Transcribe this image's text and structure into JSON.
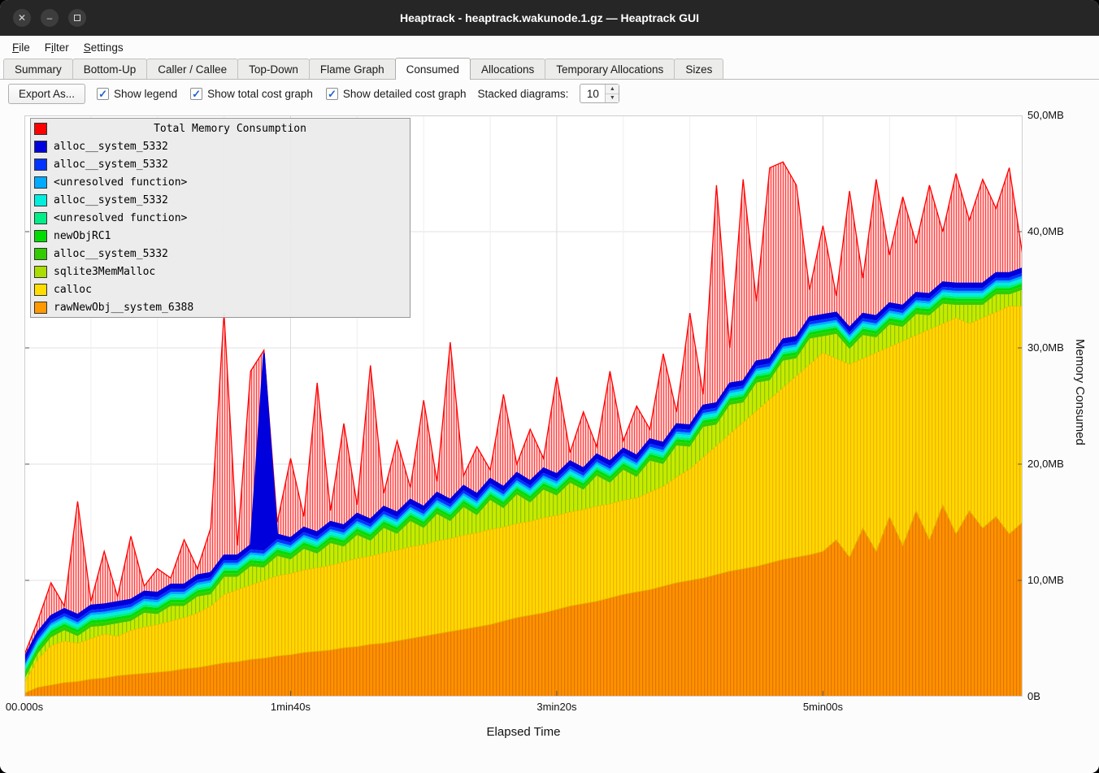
{
  "window": {
    "title": "Heaptrack - heaptrack.wakunode.1.gz — Heaptrack GUI"
  },
  "window_buttons": {
    "close": "✕",
    "minimize": "–",
    "maximize": ""
  },
  "menu": {
    "items": [
      {
        "label": "File",
        "accel_index": 0
      },
      {
        "label": "Filter",
        "accel_index": 1
      },
      {
        "label": "Settings",
        "accel_index": 0
      }
    ]
  },
  "tabs": {
    "items": [
      "Summary",
      "Bottom-Up",
      "Caller / Callee",
      "Top-Down",
      "Flame Graph",
      "Consumed",
      "Allocations",
      "Temporary Allocations",
      "Sizes"
    ],
    "active": "Consumed"
  },
  "toolbar": {
    "export_label": "Export As...",
    "checkboxes": [
      {
        "label": "Show legend",
        "checked": true
      },
      {
        "label": "Show total cost graph",
        "checked": true
      },
      {
        "label": "Show detailed cost graph",
        "checked": true
      }
    ],
    "stacked_label": "Stacked diagrams:",
    "stacked_value": "10"
  },
  "legend": {
    "title": "Total Memory Consumption",
    "title_color": "#ff0000",
    "items": [
      {
        "label": "alloc__system_5332",
        "color": "#0000dd"
      },
      {
        "label": "alloc__system_5332",
        "color": "#0033ff"
      },
      {
        "label": "<unresolved function>",
        "color": "#00aaff"
      },
      {
        "label": "alloc__system_5332",
        "color": "#00eedd"
      },
      {
        "label": "<unresolved function>",
        "color": "#00ee88"
      },
      {
        "label": "newObjRC1",
        "color": "#00dd00"
      },
      {
        "label": "alloc__system_5332",
        "color": "#33cc00"
      },
      {
        "label": "sqlite3MemMalloc",
        "color": "#aadd00"
      },
      {
        "label": "calloc",
        "color": "#ffdd00"
      },
      {
        "label": "rawNewObj__system_6388",
        "color": "#ff9900"
      }
    ]
  },
  "chart_data": {
    "type": "area",
    "title": "Total Memory Consumption",
    "xlabel": "Elapsed Time",
    "ylabel": "Memory Consumed",
    "ylim_mb": [
      0,
      50
    ],
    "x_step_s": 5,
    "x_max_s": 375,
    "grid": true,
    "legend_position": "top-left",
    "y_ticks": [
      {
        "v": 0,
        "label": "0B"
      },
      {
        "v": 10,
        "label": "10,0MB"
      },
      {
        "v": 20,
        "label": "20,0MB"
      },
      {
        "v": 30,
        "label": "30,0MB"
      },
      {
        "v": 40,
        "label": "40,0MB"
      },
      {
        "v": 50,
        "label": "50,0MB"
      }
    ],
    "x_ticks": [
      {
        "t": 0,
        "label": "00.000s"
      },
      {
        "t": 100,
        "label": "1min40s"
      },
      {
        "t": 200,
        "label": "3min20s"
      },
      {
        "t": 300,
        "label": "5min00s"
      }
    ],
    "colors": {
      "total_red": "#ff0000",
      "total_fill_bg": "#ffc9c9",
      "total_fill_line": "#ff4040",
      "orange": "#ff9100",
      "orange_line": "#e07600",
      "yellow": "#ffd800",
      "yellow_line": "#eeb300",
      "sqlite_green": "#c6ea00",
      "sqlite_green_line": "#8cc400",
      "blue_line": "#0000dd"
    },
    "series": {
      "rawNewObj__system_6388_top_mb": [
        0.3,
        0.8,
        1.0,
        1.2,
        1.3,
        1.5,
        1.6,
        1.8,
        1.9,
        2.0,
        2.1,
        2.2,
        2.4,
        2.5,
        2.7,
        2.9,
        3.0,
        3.2,
        3.3,
        3.5,
        3.6,
        3.8,
        3.9,
        4.0,
        4.2,
        4.3,
        4.5,
        4.6,
        4.8,
        5.0,
        5.2,
        5.4,
        5.6,
        5.8,
        6.0,
        6.2,
        6.5,
        6.8,
        7.0,
        7.2,
        7.5,
        7.8,
        8.0,
        8.2,
        8.5,
        8.8,
        9.0,
        9.2,
        9.5,
        9.8,
        10.0,
        10.2,
        10.5,
        10.8,
        11.0,
        11.2,
        11.5,
        11.8,
        12.0,
        12.2,
        12.5,
        13.5,
        12.0,
        14.5,
        12.5,
        15.5,
        13.0,
        16.0,
        13.5,
        16.5,
        14.0,
        16.0,
        14.5,
        15.5,
        14.0,
        15.0
      ],
      "calloc_top_mb": [
        1.2,
        3.2,
        4.4,
        4.8,
        4.6,
        5.0,
        5.4,
        5.2,
        5.7,
        6.0,
        6.2,
        6.5,
        6.8,
        7.2,
        7.8,
        8.8,
        9.2,
        9.6,
        10.0,
        10.4,
        10.6,
        10.9,
        11.1,
        11.3,
        11.6,
        11.9,
        12.1,
        12.4,
        12.6,
        12.9,
        13.1,
        13.4,
        13.6,
        13.9,
        14.1,
        14.4,
        14.6,
        14.9,
        15.1,
        15.4,
        15.6,
        15.9,
        16.1,
        16.4,
        16.6,
        16.9,
        17.1,
        17.6,
        18.1,
        18.9,
        19.6,
        20.6,
        21.6,
        22.6,
        23.6,
        24.6,
        25.6,
        26.6,
        27.6,
        28.6,
        29.6,
        29.1,
        28.6,
        29.1,
        29.6,
        30.1,
        30.6,
        31.1,
        31.6,
        32.1,
        32.6,
        32.1,
        32.6,
        33.1,
        33.6,
        33.6
      ],
      "sqlite3MemMalloc_thickness_mb": [
        0.3,
        0.5,
        0.7,
        0.9,
        0.6,
        1.0,
        0.7,
        1.1,
        0.8,
        1.2,
        0.9,
        1.3,
        1.0,
        1.4,
        1.0,
        1.5,
        1.1,
        1.6,
        1.1,
        1.7,
        1.2,
        1.8,
        1.2,
        1.9,
        1.3,
        2.0,
        1.3,
        2.1,
        1.4,
        2.2,
        1.4,
        2.3,
        1.5,
        2.4,
        1.5,
        2.5,
        1.6,
        2.5,
        1.6,
        2.4,
        1.7,
        2.5,
        1.7,
        2.6,
        1.8,
        2.6,
        1.8,
        2.7,
        1.9,
        2.7,
        1.9,
        2.6,
        1.8,
        2.5,
        1.7,
        2.4,
        1.6,
        2.3,
        1.5,
        2.2,
        1.4,
        2.1,
        1.3,
        2.0,
        1.3,
        1.9,
        1.2,
        1.8,
        1.2,
        1.7,
        1.1,
        1.6,
        1.1,
        1.5,
        1.0,
        1.4
      ],
      "thin_layers": [
        {
          "name": "alloc__system_5332",
          "color": "#33cc00",
          "thickness_mb": 0.3
        },
        {
          "name": "newObjRC1",
          "color": "#00dd00",
          "thickness_mb": 0.25
        },
        {
          "name": "<unresolved function>",
          "color": "#00ee88",
          "thickness_mb": 0.2
        },
        {
          "name": "alloc__system_5332",
          "color": "#00eedd",
          "thickness_mb": 0.25
        },
        {
          "name": "<unresolved function>",
          "color": "#00aaff",
          "thickness_mb": 0.2
        },
        {
          "name": "alloc__system_5332",
          "color": "#0033ff",
          "thickness_mb": 0.25
        }
      ],
      "blue_top_layer": {
        "name": "alloc__system_5332",
        "color": "#0000dd",
        "default_thickness_mb": 0.4,
        "spikes": {
          "18": 17.0
        }
      },
      "total_mb": [
        3.6,
        6.5,
        9.8,
        7.8,
        16.8,
        8.2,
        12.5,
        8.6,
        13.8,
        9.5,
        11.0,
        10.2,
        13.5,
        11.0,
        14.5,
        33.0,
        13.0,
        28.0,
        29.8,
        15.0,
        20.5,
        15.5,
        27.0,
        16.0,
        23.5,
        16.5,
        28.5,
        17.5,
        22.0,
        18.0,
        25.5,
        18.5,
        30.5,
        19.0,
        21.5,
        19.5,
        26.0,
        20.0,
        23.0,
        20.5,
        27.5,
        21.0,
        24.5,
        21.5,
        28.0,
        22.0,
        25.0,
        23.0,
        29.5,
        24.5,
        33.0,
        26.0,
        44.0,
        30.0,
        44.5,
        34.0,
        45.5,
        46.0,
        44.0,
        35.0,
        40.5,
        34.5,
        43.5,
        36.0,
        44.5,
        38.0,
        43.0,
        39.0,
        44.0,
        40.0,
        45.0,
        41.0,
        44.5,
        42.0,
        45.5,
        38.0
      ]
    }
  }
}
